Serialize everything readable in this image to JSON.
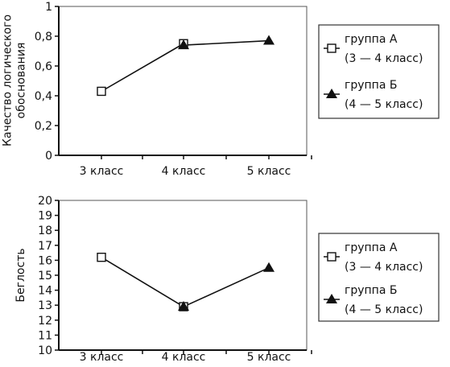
{
  "chart_data": [
    {
      "type": "line",
      "ylabel": [
        "Качество логического",
        "обоснования"
      ],
      "ylim": [
        0,
        1
      ],
      "yticks": [
        "0",
        "0,2",
        "0,4",
        "0,6",
        "0,8",
        "1"
      ],
      "ytick_values": [
        0,
        0.2,
        0.4,
        0.6,
        0.8,
        1
      ],
      "categories": [
        "3 класс",
        "4 класс",
        "5 класс"
      ],
      "series": [
        {
          "name": "группа А",
          "name_line2": "(3 — 4 класс)",
          "marker": "open-square",
          "points": [
            {
              "category": "3 класс",
              "value": 0.43
            },
            {
              "category": "4 класс",
              "value": 0.75
            }
          ]
        },
        {
          "name": "группа Б",
          "name_line2": "(4 — 5 класс)",
          "marker": "filled-triangle",
          "points": [
            {
              "category": "4 класс",
              "value": 0.74
            },
            {
              "category": "5 класс",
              "value": 0.77
            }
          ]
        }
      ],
      "grid": false,
      "legend_position": "right"
    },
    {
      "type": "line",
      "ylabel": [
        "Беглость"
      ],
      "ylim": [
        10,
        20
      ],
      "yticks": [
        "10",
        "11",
        "12",
        "13",
        "14",
        "15",
        "16",
        "17",
        "18",
        "19",
        "20"
      ],
      "ytick_values": [
        10,
        11,
        12,
        13,
        14,
        15,
        16,
        17,
        18,
        19,
        20
      ],
      "categories": [
        "3 класс",
        "4 класс",
        "5 класс"
      ],
      "series": [
        {
          "name": "группа А",
          "name_line2": "(3 — 4 класс)",
          "marker": "open-square",
          "points": [
            {
              "category": "3 класс",
              "value": 16.2
            },
            {
              "category": "4 класс",
              "value": 12.9
            }
          ]
        },
        {
          "name": "группа Б",
          "name_line2": "(4 — 5 класс)",
          "marker": "filled-triangle",
          "points": [
            {
              "category": "4 класс",
              "value": 12.9
            },
            {
              "category": "5 класс",
              "value": 15.5
            }
          ]
        }
      ],
      "grid": false,
      "legend_position": "right"
    }
  ]
}
